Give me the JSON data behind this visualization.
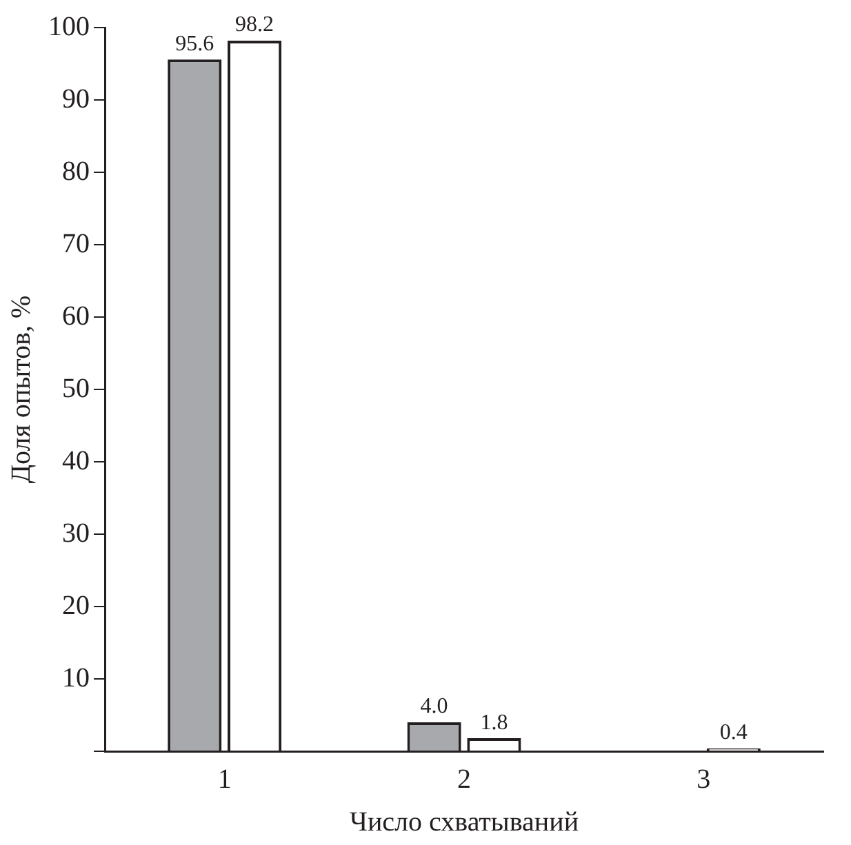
{
  "chart_data": {
    "type": "bar",
    "xlabel": "Число схватываний",
    "ylabel": "Доля опытов, %",
    "categories": [
      "1",
      "2",
      "3"
    ],
    "series": [
      {
        "color": "#a7a9ac",
        "values": [
          95.6,
          4.0,
          null
        ],
        "value_labels": [
          "95.6",
          "4.0",
          null
        ]
      },
      {
        "color": "#ffffff",
        "values": [
          98.2,
          1.8,
          0.4
        ],
        "value_labels": [
          "98.2",
          "1.8",
          "0.4"
        ]
      }
    ],
    "ylim": [
      0,
      100
    ],
    "yticks": [
      {
        "value": 0,
        "label": null
      },
      10,
      20,
      30,
      40,
      50,
      60,
      70,
      80,
      90,
      100
    ],
    "grid": false,
    "legend": false
  }
}
